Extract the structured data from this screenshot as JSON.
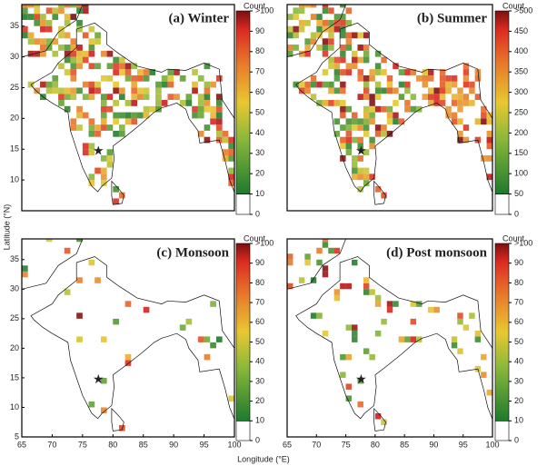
{
  "figure": {
    "y_axis_label": "Latitude (°N)",
    "x_axis_label": "Longitude (°E)",
    "xlim": [
      65,
      100
    ],
    "ylim": [
      5,
      38.5
    ],
    "panels": [
      {
        "title": "(a) Winter",
        "colorbar_label": "Count",
        "colorbar_ticks": [
          0,
          10,
          20,
          30,
          40,
          50,
          60,
          70,
          80,
          90,
          {
            "value": 100,
            "label": ">100"
          }
        ],
        "yticks": [
          10,
          15,
          20,
          25,
          30,
          35
        ],
        "xticks": [],
        "station": {
          "lon": 77.6,
          "lat": 14.6
        }
      },
      {
        "title": "(b) Summer",
        "colorbar_label": "Count",
        "colorbar_ticks": [
          0,
          50,
          100,
          150,
          200,
          250,
          300,
          350,
          400,
          450,
          {
            "value": 500,
            "label": ">500"
          }
        ],
        "yticks": [],
        "xticks": [],
        "station": {
          "lon": 77.6,
          "lat": 14.6
        }
      },
      {
        "title": "(c) Monsoon",
        "colorbar_label": "Count",
        "colorbar_ticks": [
          0,
          10,
          20,
          30,
          40,
          50,
          60,
          70,
          80,
          90,
          {
            "value": 100,
            "label": ">100"
          }
        ],
        "yticks": [
          5,
          10,
          15,
          20,
          25,
          30,
          35
        ],
        "xticks": [
          65,
          70,
          75,
          80,
          85,
          90,
          95,
          100
        ],
        "station": {
          "lon": 77.6,
          "lat": 14.6
        }
      },
      {
        "title": "(d) Post monsoon",
        "colorbar_label": "Count",
        "colorbar_ticks": [
          0,
          10,
          20,
          30,
          40,
          50,
          60,
          70,
          80,
          90,
          {
            "value": 100,
            "label": ">100"
          }
        ],
        "yticks": [],
        "xticks": [
          65,
          70,
          75,
          80,
          85,
          90,
          95,
          100
        ],
        "station": {
          "lon": 77.6,
          "lat": 14.6
        }
      }
    ]
  }
}
